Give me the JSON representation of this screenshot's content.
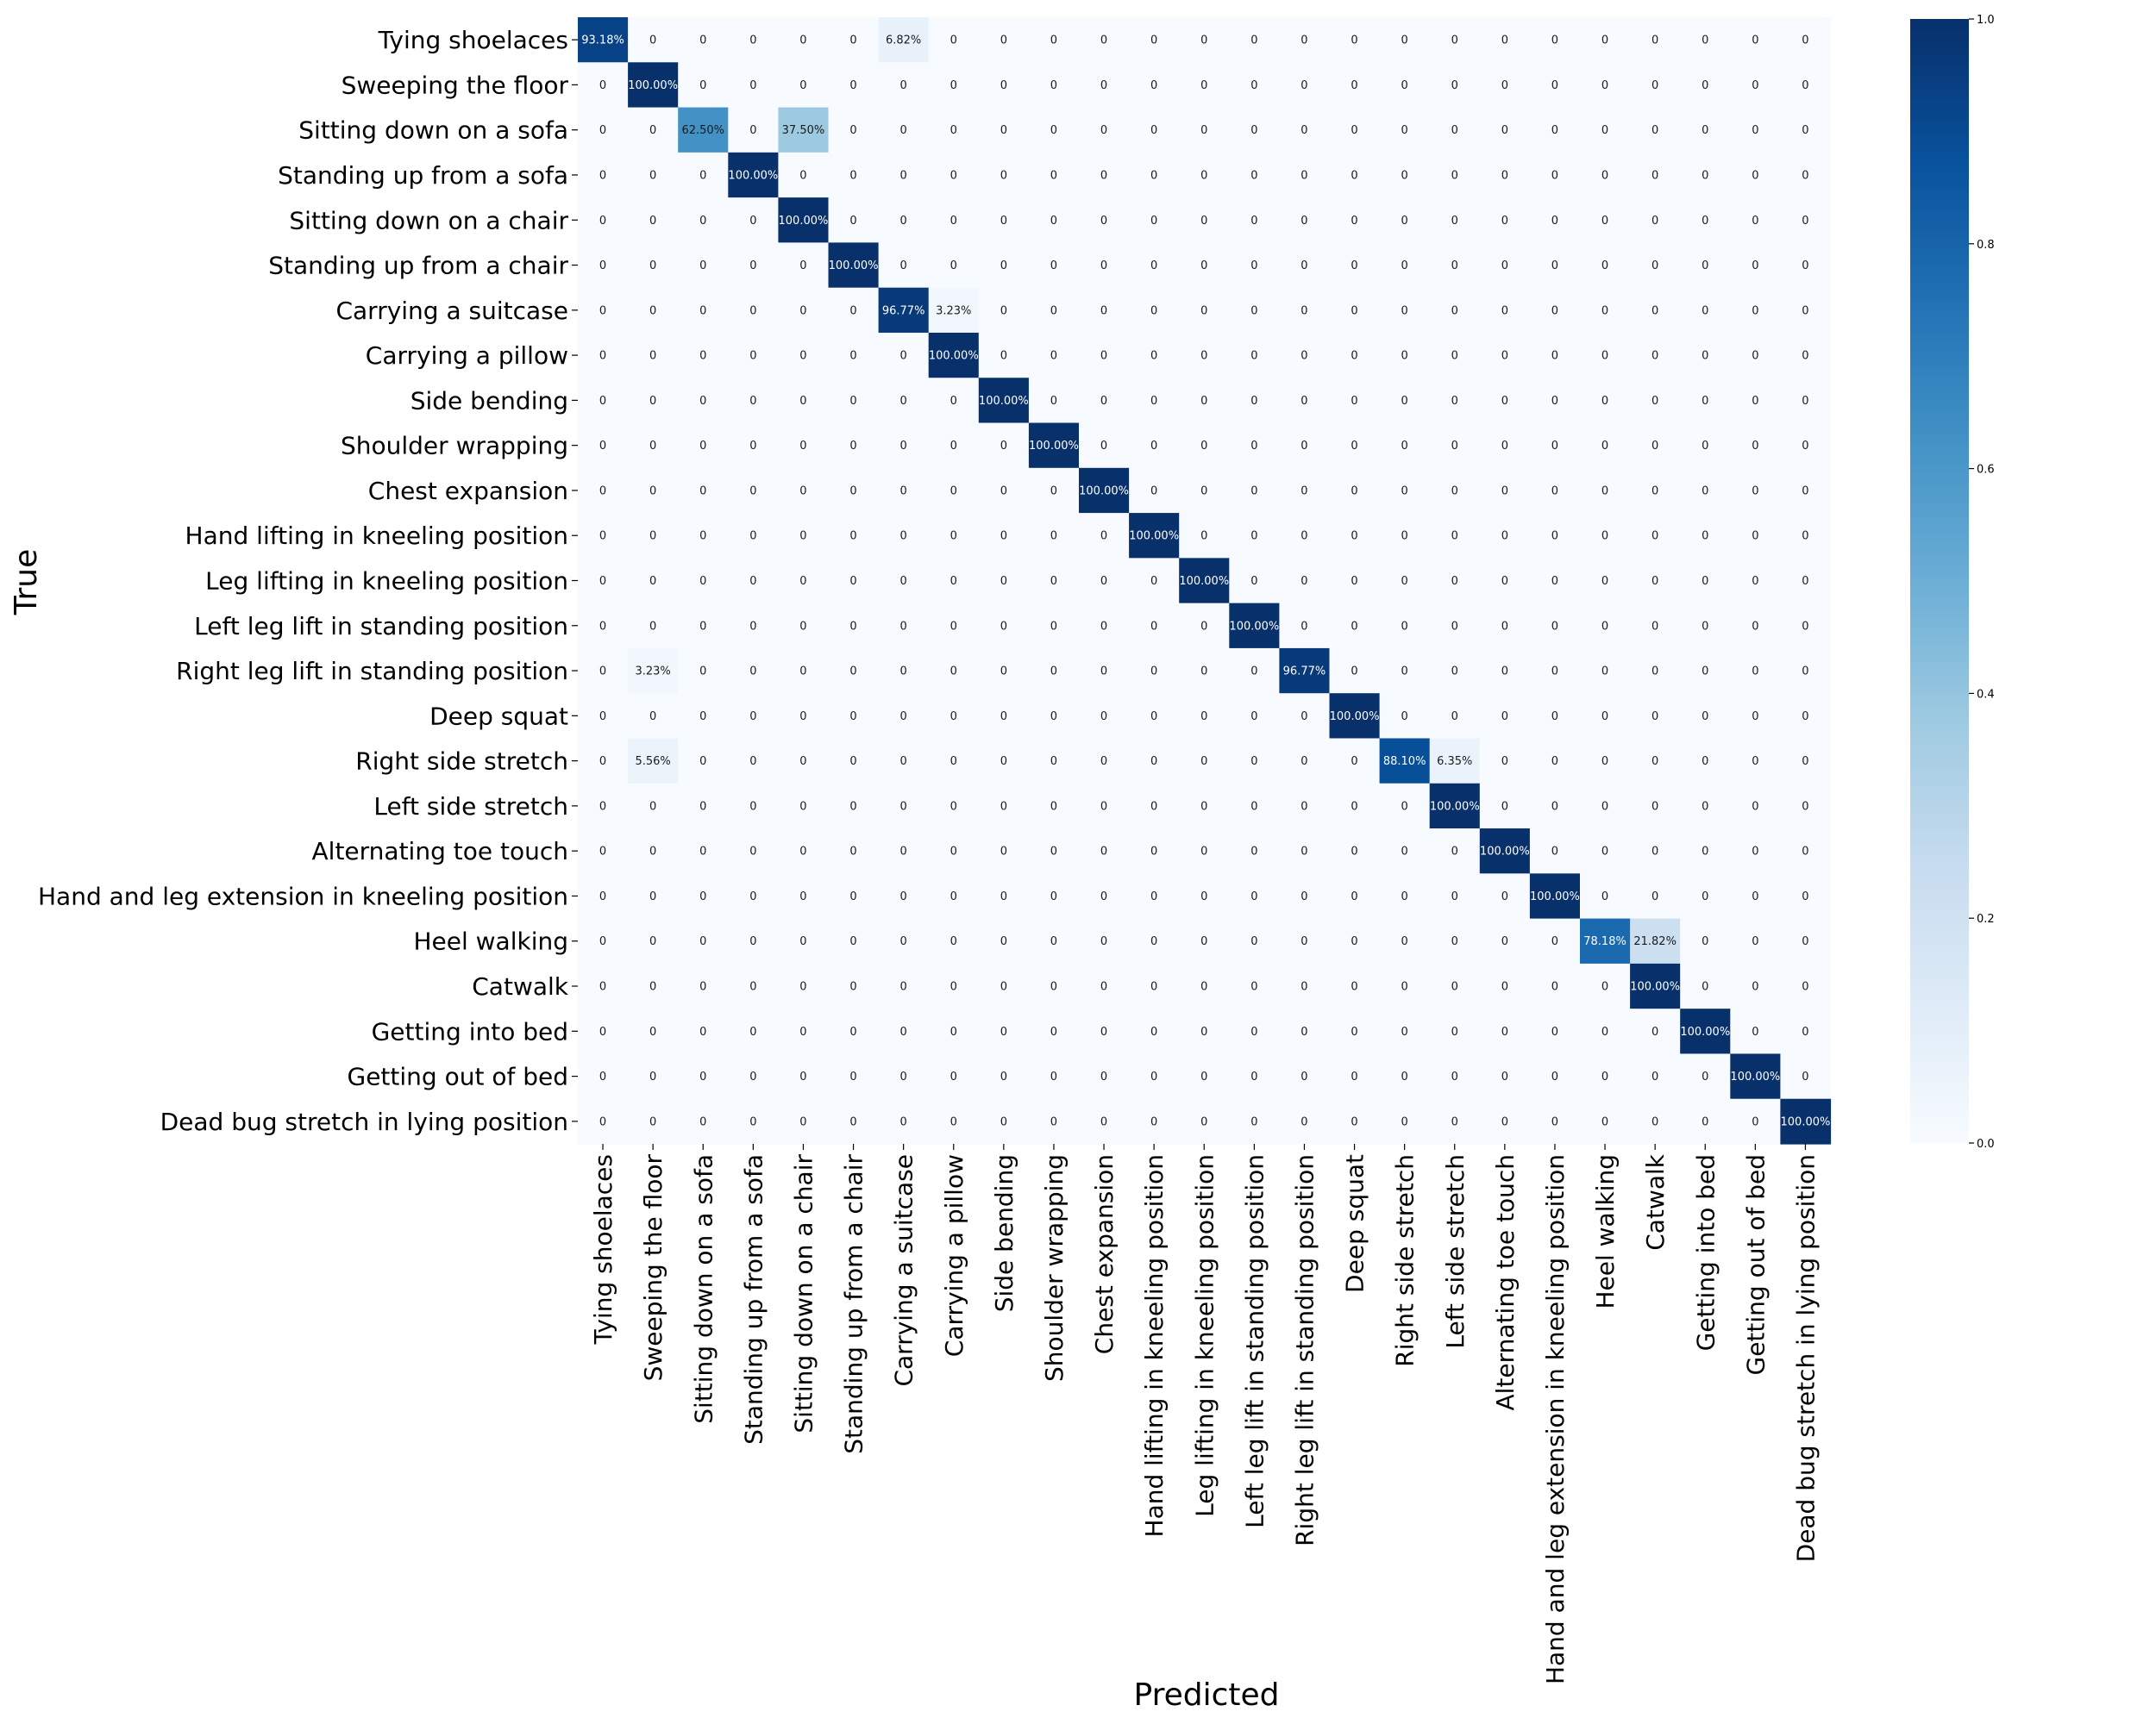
{
  "chart_data": {
    "type": "heatmap",
    "title": "",
    "xlabel": "Predicted",
    "ylabel": "True",
    "categories": [
      "Tying shoelaces",
      "Sweeping the floor",
      "Sitting down on a sofa",
      "Standing up from a sofa",
      "Sitting down on a chair",
      "Standing up from a chair",
      "Carrying a suitcase",
      "Carrying a pillow",
      "Side bending",
      "Shoulder wrapping",
      "Chest expansion",
      "Hand lifting in kneeling position",
      "Leg lifting in kneeling position",
      "Left leg lift in standing position",
      "Right leg lift in standing position",
      "Deep squat",
      "Right side stretch",
      "Left side stretch",
      "Alternating toe touch",
      "Hand and leg extension in kneeling position",
      "Heel walking",
      "Catwalk",
      "Getting into bed",
      "Getting out of bed",
      "Dead bug stretch in lying position"
    ],
    "nonzero_cells": [
      {
        "row": 0,
        "col": 0,
        "value": 0.9318,
        "label": "93.18%"
      },
      {
        "row": 0,
        "col": 6,
        "value": 0.0682,
        "label": "6.82%"
      },
      {
        "row": 1,
        "col": 1,
        "value": 1.0,
        "label": "100.00%"
      },
      {
        "row": 2,
        "col": 2,
        "value": 0.625,
        "label": "62.50%"
      },
      {
        "row": 2,
        "col": 4,
        "value": 0.375,
        "label": "37.50%"
      },
      {
        "row": 3,
        "col": 3,
        "value": 1.0,
        "label": "100.00%"
      },
      {
        "row": 4,
        "col": 4,
        "value": 1.0,
        "label": "100.00%"
      },
      {
        "row": 5,
        "col": 5,
        "value": 1.0,
        "label": "100.00%"
      },
      {
        "row": 6,
        "col": 6,
        "value": 0.9677,
        "label": "96.77%"
      },
      {
        "row": 6,
        "col": 7,
        "value": 0.0323,
        "label": "3.23%"
      },
      {
        "row": 7,
        "col": 7,
        "value": 1.0,
        "label": "100.00%"
      },
      {
        "row": 8,
        "col": 8,
        "value": 1.0,
        "label": "100.00%"
      },
      {
        "row": 9,
        "col": 9,
        "value": 1.0,
        "label": "100.00%"
      },
      {
        "row": 10,
        "col": 10,
        "value": 1.0,
        "label": "100.00%"
      },
      {
        "row": 11,
        "col": 11,
        "value": 1.0,
        "label": "100.00%"
      },
      {
        "row": 12,
        "col": 12,
        "value": 1.0,
        "label": "100.00%"
      },
      {
        "row": 13,
        "col": 13,
        "value": 1.0,
        "label": "100.00%"
      },
      {
        "row": 14,
        "col": 1,
        "value": 0.0323,
        "label": "3.23%"
      },
      {
        "row": 14,
        "col": 14,
        "value": 0.9677,
        "label": "96.77%"
      },
      {
        "row": 15,
        "col": 15,
        "value": 1.0,
        "label": "100.00%"
      },
      {
        "row": 16,
        "col": 1,
        "value": 0.0556,
        "label": "5.56%"
      },
      {
        "row": 16,
        "col": 16,
        "value": 0.881,
        "label": "88.10%"
      },
      {
        "row": 16,
        "col": 17,
        "value": 0.0635,
        "label": "6.35%"
      },
      {
        "row": 17,
        "col": 17,
        "value": 1.0,
        "label": "100.00%"
      },
      {
        "row": 18,
        "col": 18,
        "value": 1.0,
        "label": "100.00%"
      },
      {
        "row": 19,
        "col": 19,
        "value": 1.0,
        "label": "100.00%"
      },
      {
        "row": 20,
        "col": 20,
        "value": 0.7818,
        "label": "78.18%"
      },
      {
        "row": 20,
        "col": 21,
        "value": 0.2182,
        "label": "21.82%"
      },
      {
        "row": 21,
        "col": 21,
        "value": 1.0,
        "label": "100.00%"
      },
      {
        "row": 22,
        "col": 22,
        "value": 1.0,
        "label": "100.00%"
      },
      {
        "row": 23,
        "col": 23,
        "value": 1.0,
        "label": "100.00%"
      },
      {
        "row": 24,
        "col": 24,
        "value": 1.0,
        "label": "100.00%"
      }
    ],
    "zero_label": "0",
    "colorbar": {
      "range": [
        0.0,
        1.0
      ],
      "ticks": [
        {
          "value": 0.0,
          "label": "0.0"
        },
        {
          "value": 0.2,
          "label": "0.2"
        },
        {
          "value": 0.4,
          "label": "0.4"
        },
        {
          "value": 0.6,
          "label": "0.6"
        },
        {
          "value": 0.8,
          "label": "0.8"
        },
        {
          "value": 1.0,
          "label": "1.0"
        }
      ],
      "colormap": "Blues",
      "stops": [
        "#f7fbff",
        "#deebf7",
        "#c6dbef",
        "#9ecae1",
        "#6baed6",
        "#4292c6",
        "#2171b5",
        "#08519c",
        "#08306b"
      ]
    },
    "grid": false
  }
}
